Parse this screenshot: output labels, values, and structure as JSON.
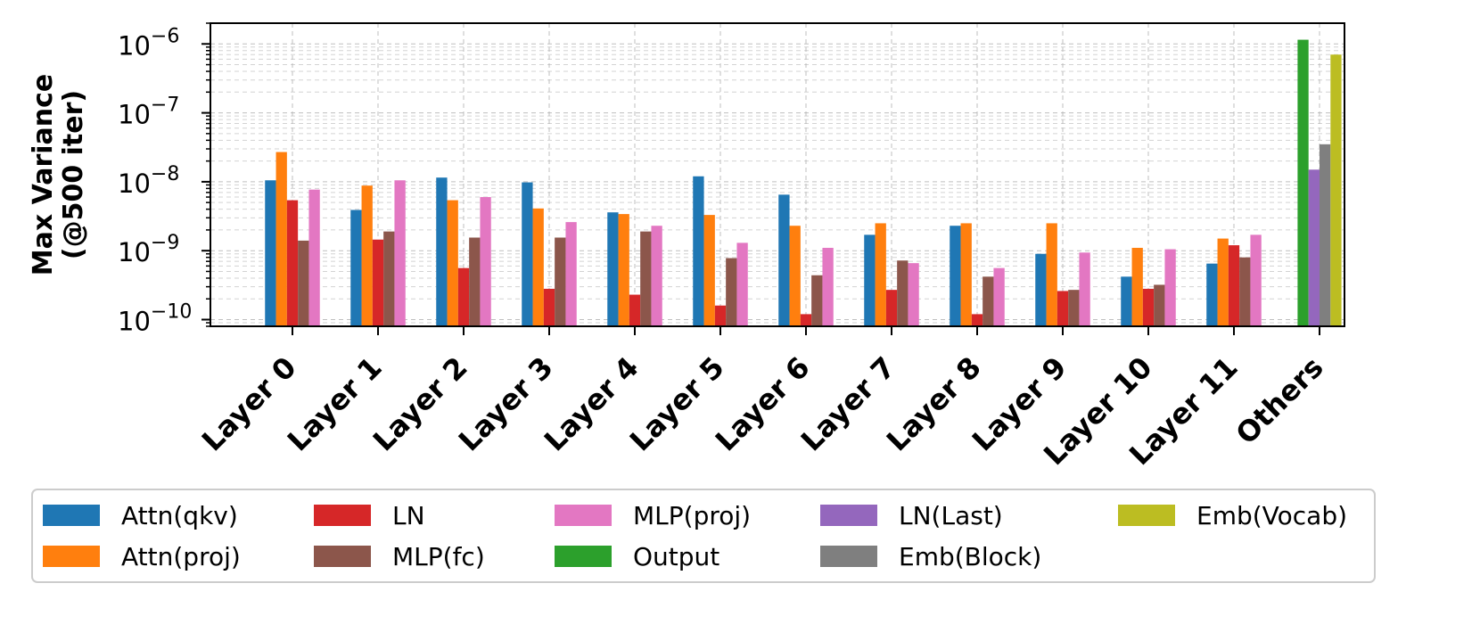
{
  "chart_data": {
    "type": "bar",
    "title": "",
    "xlabel": "",
    "ylabel_lines": [
      "Max Variance",
      "(@500 iter)"
    ],
    "yscale": "log",
    "ylim": [
      8e-11,
      2e-06
    ],
    "yticks": [
      1e-10,
      1e-09,
      1e-08,
      1e-07,
      1e-06
    ],
    "ytick_labels": [
      {
        "base": "10",
        "exp": "−10"
      },
      {
        "base": "10",
        "exp": "−9"
      },
      {
        "base": "10",
        "exp": "−8"
      },
      {
        "base": "10",
        "exp": "−7"
      },
      {
        "base": "10",
        "exp": "−6"
      }
    ],
    "grid": true,
    "legend_position": "bottom",
    "categories": [
      "Layer 0",
      "Layer 1",
      "Layer 2",
      "Layer 3",
      "Layer 4",
      "Layer 5",
      "Layer 6",
      "Layer 7",
      "Layer 8",
      "Layer 9",
      "Layer 10",
      "Layer 11",
      "Others"
    ],
    "series": [
      {
        "name": "Attn(qkv)",
        "color": "#1f77b4",
        "values": [
          1.05e-08,
          3.9e-09,
          1.15e-08,
          9.8e-09,
          3.6e-09,
          1.2e-08,
          6.5e-09,
          1.7e-09,
          2.3e-09,
          9e-10,
          4.2e-10,
          6.5e-10,
          null
        ]
      },
      {
        "name": "Attn(proj)",
        "color": "#ff7f0e",
        "values": [
          2.7e-08,
          8.8e-09,
          5.4e-09,
          4.1e-09,
          3.4e-09,
          3.3e-09,
          2.3e-09,
          2.5e-09,
          2.5e-09,
          2.5e-09,
          1.1e-09,
          1.5e-09,
          null
        ]
      },
      {
        "name": "LN",
        "color": "#d62728",
        "values": [
          5.4e-09,
          1.45e-09,
          5.6e-10,
          2.8e-10,
          2.3e-10,
          1.6e-10,
          1.2e-10,
          2.7e-10,
          1.2e-10,
          2.6e-10,
          2.8e-10,
          1.2e-09,
          null
        ]
      },
      {
        "name": "MLP(fc)",
        "color": "#8c564b",
        "values": [
          1.4e-09,
          1.9e-09,
          1.55e-09,
          1.55e-09,
          1.9e-09,
          7.8e-10,
          4.4e-10,
          7.2e-10,
          4.2e-10,
          2.7e-10,
          3.2e-10,
          8e-10,
          null
        ]
      },
      {
        "name": "MLP(proj)",
        "color": "#e377c2",
        "values": [
          7.7e-09,
          1.05e-08,
          6e-09,
          2.6e-09,
          2.3e-09,
          1.3e-09,
          1.1e-09,
          6.6e-10,
          5.6e-10,
          9.4e-10,
          1.05e-09,
          1.7e-09,
          null
        ]
      },
      {
        "name": "Output",
        "color": "#2ca02c",
        "values": [
          null,
          null,
          null,
          null,
          null,
          null,
          null,
          null,
          null,
          null,
          null,
          null,
          1.15e-06
        ]
      },
      {
        "name": "LN(Last)",
        "color": "#9467bd",
        "values": [
          null,
          null,
          null,
          null,
          null,
          null,
          null,
          null,
          null,
          null,
          null,
          null,
          1.5e-08
        ]
      },
      {
        "name": "Emb(Block)",
        "color": "#7f7f7f",
        "values": [
          null,
          null,
          null,
          null,
          null,
          null,
          null,
          null,
          null,
          null,
          null,
          null,
          3.5e-08
        ]
      },
      {
        "name": "Emb(Vocab)",
        "color": "#bcbd22",
        "values": [
          null,
          null,
          null,
          null,
          null,
          null,
          null,
          null,
          null,
          null,
          null,
          null,
          7e-07
        ]
      }
    ]
  }
}
